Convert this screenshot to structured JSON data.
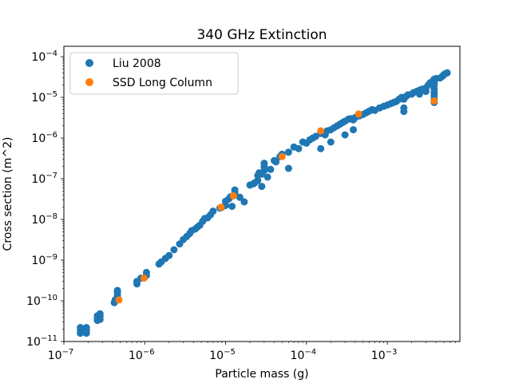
{
  "chart_data": {
    "type": "scatter",
    "title": "340 GHz Extinction",
    "xlabel": "Particle mass (g)",
    "ylabel": "Cross section (m^2)",
    "xscale": "log",
    "yscale": "log",
    "xlim": [
      1e-07,
      0.0079
    ],
    "ylim": [
      1e-11,
      0.00018
    ],
    "x_ticks": [
      {
        "value": 1e-07,
        "base": "10",
        "exp": "−7"
      },
      {
        "value": 1e-06,
        "base": "10",
        "exp": "−6"
      },
      {
        "value": 1e-05,
        "base": "10",
        "exp": "−5"
      },
      {
        "value": 0.0001,
        "base": "10",
        "exp": "−4"
      },
      {
        "value": 0.001,
        "base": "10",
        "exp": "−3"
      }
    ],
    "y_ticks": [
      {
        "value": 1e-11,
        "base": "10",
        "exp": "−11"
      },
      {
        "value": 1e-10,
        "base": "10",
        "exp": "−10"
      },
      {
        "value": 1e-09,
        "base": "10",
        "exp": "−9"
      },
      {
        "value": 1e-08,
        "base": "10",
        "exp": "−8"
      },
      {
        "value": 1e-07,
        "base": "10",
        "exp": "−7"
      },
      {
        "value": 1e-06,
        "base": "10",
        "exp": "−6"
      },
      {
        "value": 1e-05,
        "base": "10",
        "exp": "−5"
      },
      {
        "value": 0.0001,
        "base": "10",
        "exp": "−4"
      }
    ],
    "legend_position": "top-left",
    "series": [
      {
        "name": "Liu 2008",
        "color": "#1f77b4",
        "points": [
          [
            1.6e-07,
            1.6e-11
          ],
          [
            1.6e-07,
            1.9e-11
          ],
          [
            1.6e-07,
            2.2e-11
          ],
          [
            1.9e-07,
            1.6e-11
          ],
          [
            1.9e-07,
            1.9e-11
          ],
          [
            1.9e-07,
            2.2e-11
          ],
          [
            2.6e-07,
            3.3e-11
          ],
          [
            2.6e-07,
            3.8e-11
          ],
          [
            2.6e-07,
            4.3e-11
          ],
          [
            2.8e-07,
            3.5e-11
          ],
          [
            2.8e-07,
            4.2e-11
          ],
          [
            2.8e-07,
            4.8e-11
          ],
          [
            4.2e-07,
            9e-11
          ],
          [
            4.3e-07,
            1.05e-10
          ],
          [
            4.6e-07,
            1.1e-10
          ],
          [
            4.6e-07,
            1.35e-10
          ],
          [
            4.6e-07,
            1.6e-10
          ],
          [
            4.6e-07,
            1.8e-10
          ],
          [
            8e-07,
            2.6e-10
          ],
          [
            8e-07,
            3e-10
          ],
          [
            9e-07,
            3.6e-10
          ],
          [
            1.05e-06,
            4.2e-10
          ],
          [
            1.05e-06,
            5e-10
          ],
          [
            1.5e-06,
            8e-10
          ],
          [
            1.6e-06,
            9e-10
          ],
          [
            1.8e-06,
            1.1e-09
          ],
          [
            2e-06,
            1.3e-09
          ],
          [
            2.3e-06,
            1.8e-09
          ],
          [
            2.7e-06,
            2.5e-09
          ],
          [
            3e-06,
            3.2e-09
          ],
          [
            3.3e-06,
            3.8e-09
          ],
          [
            3.6e-06,
            4.5e-09
          ],
          [
            3.8e-06,
            5.3e-09
          ],
          [
            4.2e-06,
            5.8e-09
          ],
          [
            4.5e-06,
            6.5e-09
          ],
          [
            4.8e-06,
            7.2e-09
          ],
          [
            5.2e-06,
            9e-09
          ],
          [
            5.5e-06,
            1.05e-08
          ],
          [
            6e-06,
            1.1e-08
          ],
          [
            6.5e-06,
            1.3e-08
          ],
          [
            7e-06,
            1.6e-08
          ],
          [
            8.5e-06,
            1.9e-08
          ],
          [
            9e-06,
            2e-08
          ],
          [
            1e-05,
            2.2e-08
          ],
          [
            1e-05,
            2.8e-08
          ],
          [
            1.1e-05,
            3.2e-08
          ],
          [
            1.15e-05,
            3.6e-08
          ],
          [
            1.2e-05,
            2.1e-08
          ],
          [
            1.3e-05,
            4e-08
          ],
          [
            1.3e-05,
            4.5e-08
          ],
          [
            1.3e-05,
            5.3e-08
          ],
          [
            1.5e-05,
            3.5e-08
          ],
          [
            1.7e-05,
            2.7e-08
          ],
          [
            2e-05,
            7e-08
          ],
          [
            2.2e-05,
            7.5e-08
          ],
          [
            2.3e-05,
            8e-08
          ],
          [
            2.5e-05,
            9e-08
          ],
          [
            2.5e-05,
            1.2e-07
          ],
          [
            2.6e-05,
            1.4e-07
          ],
          [
            2.8e-05,
            1.3e-07
          ],
          [
            2.8e-05,
            6.5e-08
          ],
          [
            3e-05,
            1.6e-07
          ],
          [
            3e-05,
            2e-07
          ],
          [
            3e-05,
            2.4e-07
          ],
          [
            3.3e-05,
            1.1e-07
          ],
          [
            3.6e-05,
            1.7e-07
          ],
          [
            4e-05,
            2.8e-07
          ],
          [
            4.2e-05,
            2.6e-07
          ],
          [
            4.7e-05,
            3.5e-07
          ],
          [
            5e-05,
            4e-07
          ],
          [
            6e-05,
            1.8e-07
          ],
          [
            6e-05,
            4.5e-07
          ],
          [
            7e-05,
            6e-07
          ],
          [
            8e-05,
            5.5e-07
          ],
          [
            9e-05,
            8e-07
          ],
          [
            0.0001,
            7.5e-07
          ],
          [
            0.00011,
            9e-07
          ],
          [
            0.00012,
            1e-06
          ],
          [
            0.00013,
            1.1e-06
          ],
          [
            0.00015,
            1.3e-06
          ],
          [
            0.00015,
            5.5e-07
          ],
          [
            0.00017,
            1.2e-06
          ],
          [
            0.00018,
            1.5e-06
          ],
          [
            0.0002,
            1.6e-06
          ],
          [
            0.0002,
            8e-07
          ],
          [
            0.00022,
            1.8e-06
          ],
          [
            0.00024,
            2e-06
          ],
          [
            0.00026,
            2.2e-06
          ],
          [
            0.00028,
            2.4e-06
          ],
          [
            0.0003,
            2.6e-06
          ],
          [
            0.00033,
            2.9e-06
          ],
          [
            0.00035,
            3e-06
          ],
          [
            0.00038,
            2.8e-06
          ],
          [
            0.00038,
            1.6e-06
          ],
          [
            0.0003,
            1.2e-06
          ],
          [
            0.0004,
            3.2e-06
          ],
          [
            0.00045,
            3.5e-06
          ],
          [
            0.0005,
            3.8e-06
          ],
          [
            0.00055,
            4.2e-06
          ],
          [
            0.0006,
            4.6e-06
          ],
          [
            0.00065,
            5e-06
          ],
          [
            0.0007,
            4.8e-06
          ],
          [
            0.0008,
            5.5e-06
          ],
          [
            0.0009,
            6e-06
          ],
          [
            0.001,
            6.5e-06
          ],
          [
            0.0011,
            7e-06
          ],
          [
            0.0012,
            7.5e-06
          ],
          [
            0.0013,
            8e-06
          ],
          [
            0.0014,
            9e-06
          ],
          [
            0.0015,
            1e-05
          ],
          [
            0.0016,
            9e-06
          ],
          [
            0.0016,
            4.5e-06
          ],
          [
            0.0016,
            5.5e-06
          ],
          [
            0.0017,
            1.05e-05
          ],
          [
            0.0018,
            1.15e-05
          ],
          [
            0.002,
            1.2e-05
          ],
          [
            0.0021,
            1.3e-05
          ],
          [
            0.0023,
            1.4e-05
          ],
          [
            0.0025,
            1.5e-05
          ],
          [
            0.0025,
            1.2e-05
          ],
          [
            0.0027,
            1.6e-05
          ],
          [
            0.003,
            1.7e-05
          ],
          [
            0.003,
            1.4e-05
          ],
          [
            0.0032,
            2e-05
          ],
          [
            0.0034,
            2.3e-05
          ],
          [
            0.0037,
            2.6e-05
          ],
          [
            0.0038,
            2.8e-05
          ],
          [
            0.004,
            2.9e-05
          ],
          [
            0.0038,
            7.5e-06
          ],
          [
            0.0038,
            9e-06
          ],
          [
            0.0038,
            1.1e-05
          ],
          [
            0.0038,
            1.3e-05
          ],
          [
            0.0038,
            1.6e-05
          ],
          [
            0.0038,
            2e-05
          ],
          [
            0.0038,
            2.2e-05
          ],
          [
            0.0045,
            3e-05
          ],
          [
            0.0048,
            3.3e-05
          ],
          [
            0.005,
            3.6e-05
          ],
          [
            0.0052,
            3.8e-05
          ],
          [
            0.0055,
            4e-05
          ]
        ]
      },
      {
        "name": "SSD Long Column",
        "color": "#ff7f0e",
        "points": [
          [
            4.8e-07,
            1.05e-10
          ],
          [
            9.8e-07,
            3.6e-10
          ],
          [
            8.8e-06,
            2e-08
          ],
          [
            1.25e-05,
            3.8e-08
          ],
          [
            5e-05,
            3.5e-07
          ],
          [
            0.00015,
            1.5e-06
          ],
          [
            0.00044,
            3.9e-06
          ],
          [
            0.0038,
            8.2e-06
          ]
        ]
      }
    ]
  }
}
